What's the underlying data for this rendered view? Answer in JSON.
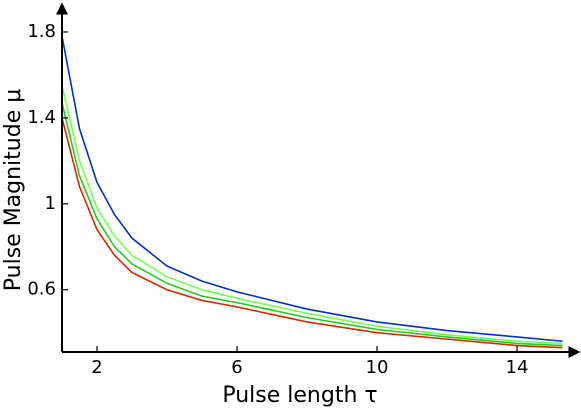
{
  "chart_data": {
    "type": "line",
    "x_label": "Pulse length τ",
    "y_label": "Pulse Magnitude μ",
    "x": [
      1,
      1.5,
      2,
      2.5,
      3,
      4,
      5,
      6,
      8,
      10,
      12,
      14,
      15.3
    ],
    "series": [
      {
        "color": "#d62a00",
        "values": [
          1.4,
          1.08,
          0.88,
          0.76,
          0.68,
          0.6,
          0.55,
          0.52,
          0.45,
          0.4,
          0.37,
          0.34,
          0.33
        ]
      },
      {
        "color": "#22cc22",
        "values": [
          1.47,
          1.13,
          0.93,
          0.8,
          0.72,
          0.63,
          0.57,
          0.54,
          0.47,
          0.415,
          0.38,
          0.35,
          0.34
        ]
      },
      {
        "color": "#77ff55",
        "values": [
          1.55,
          1.2,
          0.98,
          0.85,
          0.76,
          0.66,
          0.6,
          0.56,
          0.49,
          0.43,
          0.39,
          0.36,
          0.35
        ]
      },
      {
        "color": "#0033bb",
        "values": [
          1.78,
          1.35,
          1.1,
          0.95,
          0.84,
          0.71,
          0.64,
          0.59,
          0.51,
          0.45,
          0.41,
          0.38,
          0.36
        ]
      }
    ],
    "xlim": [
      1,
      15.3
    ],
    "ylim": [
      0.31,
      1.9
    ],
    "xticks": [
      2,
      6,
      10,
      14
    ],
    "yticks": [
      0.6,
      1,
      1.4,
      1.8
    ]
  }
}
